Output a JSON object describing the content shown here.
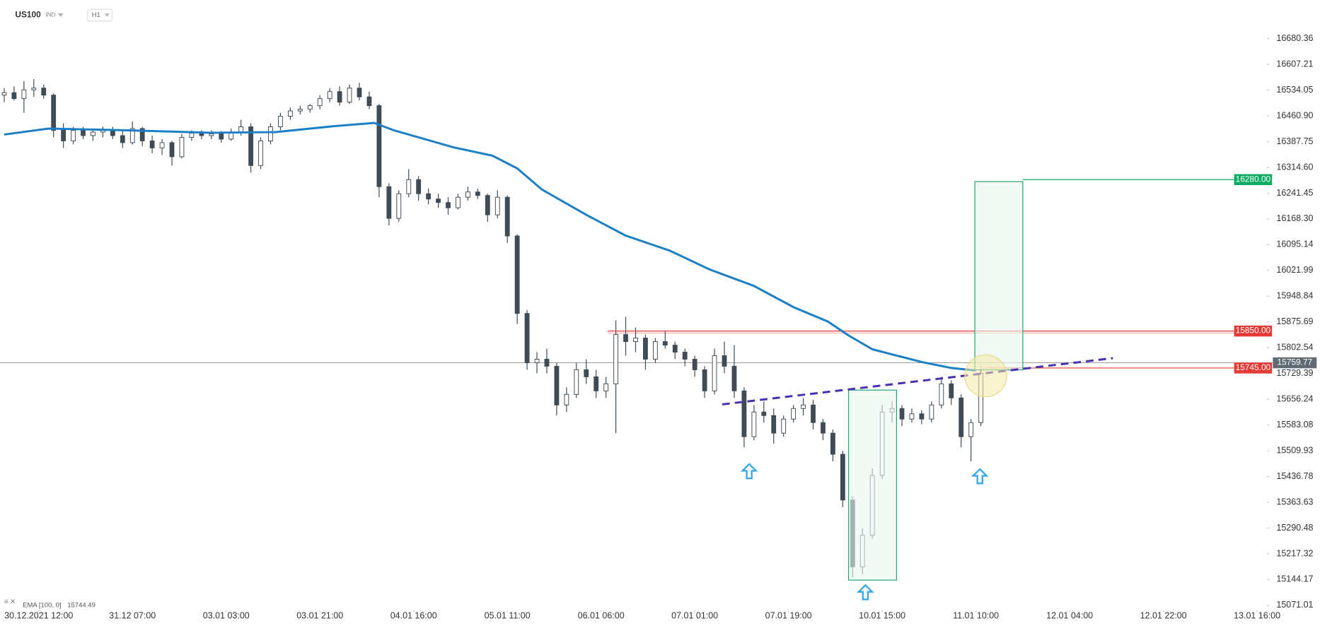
{
  "header": {
    "symbol": "US100",
    "market": "IND",
    "interval": "H1"
  },
  "chart_data": {
    "type": "candlestick",
    "x": [
      0,
      2,
      4,
      6,
      8,
      10,
      12,
      14,
      16,
      18,
      20,
      22,
      24,
      26,
      28,
      30,
      32,
      34,
      36,
      38,
      40,
      42,
      44,
      46,
      48,
      50,
      52,
      54,
      56,
      58,
      60,
      62,
      64,
      66,
      68,
      70,
      72,
      74,
      76,
      78,
      80,
      82,
      84,
      86,
      88,
      90,
      92,
      94,
      96,
      98,
      100,
      102,
      104,
      106,
      108,
      110,
      112,
      114,
      116,
      118,
      120,
      122,
      124,
      126,
      128,
      130,
      132,
      134,
      136,
      138,
      140,
      142,
      144,
      146,
      148,
      150,
      152,
      154,
      156,
      158,
      160,
      162,
      164,
      166,
      168,
      170,
      172,
      174,
      176,
      178,
      180,
      182,
      184,
      186,
      188,
      190,
      192,
      194,
      196,
      198
    ],
    "ohlc": [
      [
        16520,
        16540,
        16500,
        16527
      ],
      [
        16527,
        16545,
        16505,
        16510
      ],
      [
        16510,
        16560,
        16470,
        16535
      ],
      [
        16535,
        16565,
        16515,
        16540
      ],
      [
        16540,
        16550,
        16510,
        16520
      ],
      [
        16520,
        16525,
        16400,
        16420
      ],
      [
        16420,
        16440,
        16370,
        16390
      ],
      [
        16390,
        16430,
        16380,
        16420
      ],
      [
        16420,
        16430,
        16395,
        16405
      ],
      [
        16405,
        16425,
        16390,
        16415
      ],
      [
        16415,
        16430,
        16400,
        16420
      ],
      [
        16420,
        16430,
        16395,
        16405
      ],
      [
        16405,
        16420,
        16370,
        16385
      ],
      [
        16385,
        16445,
        16380,
        16425
      ],
      [
        16425,
        16430,
        16375,
        16390
      ],
      [
        16390,
        16405,
        16355,
        16370
      ],
      [
        16370,
        16395,
        16350,
        16385
      ],
      [
        16385,
        16390,
        16320,
        16345
      ],
      [
        16345,
        16410,
        16340,
        16400
      ],
      [
        16400,
        16420,
        16390,
        16412
      ],
      [
        16412,
        16420,
        16395,
        16405
      ],
      [
        16405,
        16420,
        16395,
        16410
      ],
      [
        16410,
        16418,
        16385,
        16395
      ],
      [
        16395,
        16425,
        16390,
        16415
      ],
      [
        16415,
        16450,
        16405,
        16430
      ],
      [
        16430,
        16440,
        16300,
        16320
      ],
      [
        16320,
        16400,
        16310,
        16390
      ],
      [
        16390,
        16440,
        16380,
        16430
      ],
      [
        16430,
        16470,
        16420,
        16460
      ],
      [
        16460,
        16485,
        16450,
        16475
      ],
      [
        16475,
        16490,
        16465,
        16480
      ],
      [
        16480,
        16495,
        16470,
        16490
      ],
      [
        16490,
        16520,
        16480,
        16510
      ],
      [
        16510,
        16540,
        16500,
        16530
      ],
      [
        16530,
        16545,
        16490,
        16500
      ],
      [
        16500,
        16550,
        16495,
        16540
      ],
      [
        16540,
        16555,
        16505,
        16515
      ],
      [
        16515,
        16530,
        16480,
        16490
      ],
      [
        16490,
        16495,
        16230,
        16260
      ],
      [
        16260,
        16270,
        16150,
        16170
      ],
      [
        16170,
        16250,
        16160,
        16240
      ],
      [
        16240,
        16310,
        16230,
        16280
      ],
      [
        16280,
        16290,
        16220,
        16240
      ],
      [
        16240,
        16255,
        16210,
        16225
      ],
      [
        16225,
        16240,
        16200,
        16215
      ],
      [
        16215,
        16230,
        16180,
        16200
      ],
      [
        16200,
        16240,
        16195,
        16230
      ],
      [
        16230,
        16260,
        16220,
        16245
      ],
      [
        16245,
        16255,
        16225,
        16235
      ],
      [
        16235,
        16240,
        16160,
        16180
      ],
      [
        16180,
        16250,
        16170,
        16230
      ],
      [
        16230,
        16235,
        16100,
        16120
      ],
      [
        16120,
        16125,
        15870,
        15900
      ],
      [
        15900,
        15910,
        15740,
        15760
      ],
      [
        15760,
        15790,
        15730,
        15770
      ],
      [
        15770,
        15800,
        15730,
        15750
      ],
      [
        15750,
        15760,
        15610,
        15640
      ],
      [
        15640,
        15690,
        15620,
        15670
      ],
      [
        15670,
        15760,
        15660,
        15740
      ],
      [
        15740,
        15770,
        15700,
        15720
      ],
      [
        15720,
        15740,
        15660,
        15680
      ],
      [
        15680,
        15720,
        15660,
        15700
      ],
      [
        15700,
        15880,
        15560,
        15840
      ],
      [
        15840,
        15890,
        15780,
        15820
      ],
      [
        15820,
        15860,
        15790,
        15830
      ],
      [
        15830,
        15840,
        15740,
        15770
      ],
      [
        15770,
        15830,
        15760,
        15820
      ],
      [
        15820,
        15850,
        15800,
        15810
      ],
      [
        15810,
        15820,
        15770,
        15790
      ],
      [
        15790,
        15800,
        15750,
        15770
      ],
      [
        15770,
        15780,
        15720,
        15740
      ],
      [
        15740,
        15750,
        15660,
        15680
      ],
      [
        15680,
        15800,
        15670,
        15780
      ],
      [
        15780,
        15820,
        15730,
        15750
      ],
      [
        15750,
        15810,
        15660,
        15680
      ],
      [
        15680,
        15690,
        15520,
        15550
      ],
      [
        15550,
        15640,
        15540,
        15620
      ],
      [
        15620,
        15650,
        15590,
        15610
      ],
      [
        15610,
        15630,
        15530,
        15560
      ],
      [
        15560,
        15610,
        15550,
        15600
      ],
      [
        15600,
        15640,
        15590,
        15630
      ],
      [
        15630,
        15660,
        15610,
        15640
      ],
      [
        15640,
        15655,
        15570,
        15590
      ],
      [
        15590,
        15600,
        15540,
        15560
      ],
      [
        15560,
        15570,
        15480,
        15500
      ],
      [
        15500,
        15510,
        15350,
        15370
      ],
      [
        15370,
        15380,
        15150,
        15180
      ],
      [
        15180,
        15290,
        15160,
        15270
      ],
      [
        15270,
        15460,
        15260,
        15440
      ],
      [
        15440,
        15640,
        15430,
        15620
      ],
      [
        15620,
        15650,
        15590,
        15630
      ],
      [
        15630,
        15640,
        15580,
        15600
      ],
      [
        15600,
        15630,
        15590,
        15615
      ],
      [
        15615,
        15625,
        15585,
        15600
      ],
      [
        15600,
        15650,
        15590,
        15640
      ],
      [
        15640,
        15720,
        15630,
        15700
      ],
      [
        15700,
        15710,
        15640,
        15660
      ],
      [
        15660,
        15670,
        15520,
        15550
      ],
      [
        15550,
        15600,
        15480,
        15590
      ],
      [
        15590,
        15750,
        15580,
        15730
      ]
    ],
    "colors": {
      "up": "#ffffff",
      "down": "#3f4b55",
      "wick": "#3f4b55"
    },
    "ema": {
      "name": "EMA [100, 0]",
      "last": 15744.49,
      "color": "#1a7fc4",
      "x": [
        0,
        9,
        25,
        42,
        55,
        67,
        75,
        79,
        91,
        99,
        104,
        109,
        118,
        126,
        135,
        143,
        152,
        160,
        167,
        171,
        176,
        186,
        192,
        197
      ],
      "values": [
        16408,
        16425,
        16420,
        16413,
        16415,
        16432,
        16441,
        16420,
        16372,
        16348,
        16312,
        16252,
        16180,
        16121,
        16078,
        16025,
        15978,
        15918,
        15877,
        15839,
        15798,
        15762,
        15745,
        15738
      ]
    },
    "xlim": [
      0,
      256
    ],
    "xticks": [
      {
        "value": 7,
        "label": "30.12.2021 12:00"
      },
      {
        "value": 26,
        "label": "31.12 07:00"
      },
      {
        "value": 45,
        "label": "03.01 03:00"
      },
      {
        "value": 64,
        "label": "03.01 21:00"
      },
      {
        "value": 83,
        "label": "04.01 16:00"
      },
      {
        "value": 102,
        "label": "05.01 11:00"
      },
      {
        "value": 121,
        "label": "06.01 06:00"
      },
      {
        "value": 140,
        "label": "07.01 01:00"
      },
      {
        "value": 159,
        "label": "07.01 19:00"
      },
      {
        "value": 178,
        "label": "10.01 15:00"
      },
      {
        "value": 197,
        "label": "11.01 10:00"
      },
      {
        "value": 216,
        "label": "12.01 04:00"
      },
      {
        "value": 235,
        "label": "12.01 22:00"
      },
      {
        "value": 254,
        "label": "13.01 16:00"
      }
    ],
    "ylim": [
      15052,
      16771
    ],
    "yticks": [
      16680.36,
      16607.21,
      16534.05,
      {
        "value": 16460.9,
        "label": "16460.90"
      },
      16387.75,
      {
        "value": 16314.6,
        "label": "16314.60"
      },
      16241.45,
      {
        "value": 16168.3,
        "label": "16168.30"
      },
      16095.14,
      16021.99,
      15948.84,
      15875.69,
      15802.54,
      15729.39,
      15656.24,
      15583.08,
      15509.93,
      15436.78,
      15363.63,
      15290.48,
      15217.32,
      15144.17,
      15071.01
    ],
    "levels": [
      {
        "value": 16280,
        "label": "16280.00",
        "color": "#0bab62"
      },
      {
        "value": 15850,
        "label": "15850.00",
        "color": "#e53935"
      },
      {
        "value": 15745,
        "label": "15745.00",
        "color": "#e53935"
      }
    ],
    "last_price": 15759.77
  }
}
